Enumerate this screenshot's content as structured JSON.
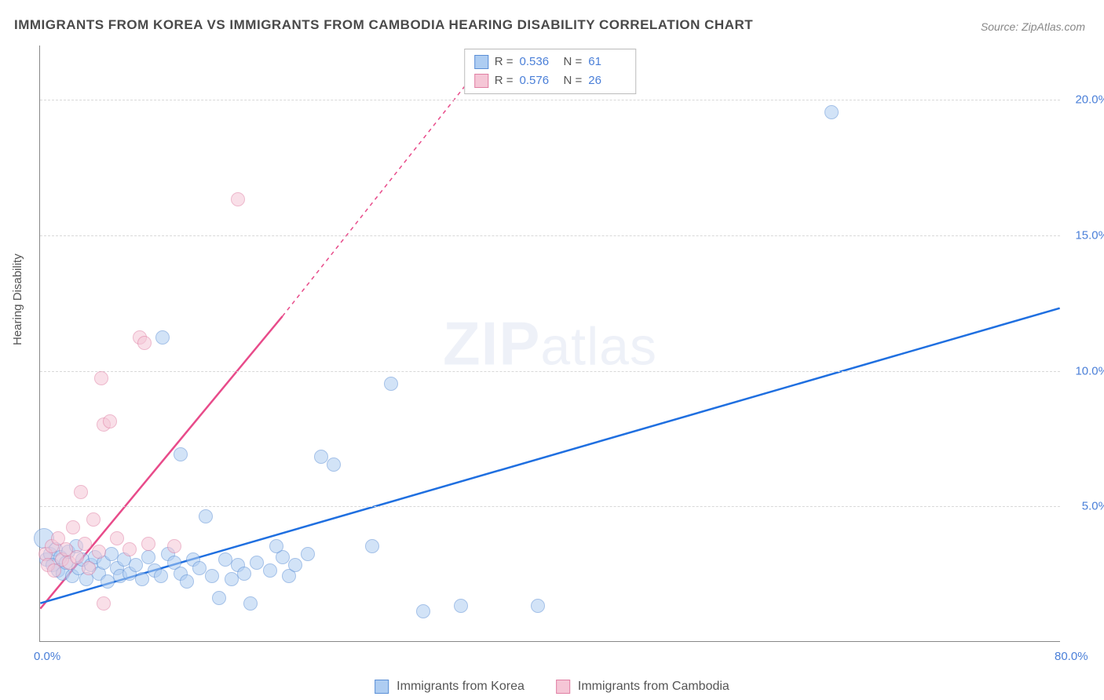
{
  "title": "IMMIGRANTS FROM KOREA VS IMMIGRANTS FROM CAMBODIA HEARING DISABILITY CORRELATION CHART",
  "source": "Source: ZipAtlas.com",
  "ylabel": "Hearing Disability",
  "watermark": "ZIPatlas",
  "chart": {
    "type": "scatter",
    "xlim": [
      0,
      80
    ],
    "ylim": [
      0,
      22
    ],
    "x_ticks": [
      {
        "v": 0,
        "label": "0.0%"
      },
      {
        "v": 80,
        "label": "80.0%"
      }
    ],
    "y_ticks": [
      {
        "v": 5,
        "label": "5.0%"
      },
      {
        "v": 10,
        "label": "10.0%"
      },
      {
        "v": 15,
        "label": "15.0%"
      },
      {
        "v": 20,
        "label": "20.0%"
      }
    ],
    "background_color": "#ffffff",
    "grid_color": "#d8d8d8",
    "axis_color": "#888888",
    "tick_label_color": "#4a7fd8",
    "tick_fontsize": 15,
    "title_fontsize": 17,
    "title_color": "#4a4a4a",
    "marker_radius": 9,
    "marker_radius_large": 13,
    "marker_opacity": 0.55,
    "series": [
      {
        "name": "Immigrants from Korea",
        "fill": "#aecdf2",
        "stroke": "#5b8fd6",
        "line_color": "#1f6fe0",
        "line_width": 2.5,
        "r": "0.536",
        "n": "61",
        "trend": {
          "x1": 0,
          "y1": 1.4,
          "x2": 80,
          "y2": 12.3
        },
        "points": [
          {
            "x": 0.3,
            "y": 3.8,
            "r": 13
          },
          {
            "x": 0.5,
            "y": 3.0
          },
          {
            "x": 0.8,
            "y": 3.2
          },
          {
            "x": 1.0,
            "y": 2.8
          },
          {
            "x": 1.2,
            "y": 3.4
          },
          {
            "x": 1.4,
            "y": 2.6
          },
          {
            "x": 1.6,
            "y": 3.1
          },
          {
            "x": 1.8,
            "y": 2.5
          },
          {
            "x": 2.0,
            "y": 2.9
          },
          {
            "x": 2.2,
            "y": 3.3
          },
          {
            "x": 2.5,
            "y": 2.4
          },
          {
            "x": 2.8,
            "y": 3.5
          },
          {
            "x": 3.0,
            "y": 2.7
          },
          {
            "x": 3.3,
            "y": 3.0
          },
          {
            "x": 3.6,
            "y": 2.3
          },
          {
            "x": 4.0,
            "y": 2.8
          },
          {
            "x": 4.3,
            "y": 3.1
          },
          {
            "x": 4.6,
            "y": 2.5
          },
          {
            "x": 5.0,
            "y": 2.9
          },
          {
            "x": 5.3,
            "y": 2.2
          },
          {
            "x": 5.6,
            "y": 3.2
          },
          {
            "x": 6.0,
            "y": 2.7
          },
          {
            "x": 6.3,
            "y": 2.4
          },
          {
            "x": 6.6,
            "y": 3.0
          },
          {
            "x": 7.0,
            "y": 2.5
          },
          {
            "x": 7.5,
            "y": 2.8
          },
          {
            "x": 8.0,
            "y": 2.3
          },
          {
            "x": 8.5,
            "y": 3.1
          },
          {
            "x": 9.0,
            "y": 2.6
          },
          {
            "x": 9.5,
            "y": 2.4
          },
          {
            "x": 10.0,
            "y": 3.2
          },
          {
            "x": 10.5,
            "y": 2.9
          },
          {
            "x": 11.0,
            "y": 2.5
          },
          {
            "x": 11.5,
            "y": 2.2
          },
          {
            "x": 12.0,
            "y": 3.0
          },
          {
            "x": 12.5,
            "y": 2.7
          },
          {
            "x": 13.0,
            "y": 4.6
          },
          {
            "x": 13.5,
            "y": 2.4
          },
          {
            "x": 14.0,
            "y": 1.6
          },
          {
            "x": 14.5,
            "y": 3.0
          },
          {
            "x": 15.0,
            "y": 2.3
          },
          {
            "x": 15.5,
            "y": 2.8
          },
          {
            "x": 16.0,
            "y": 2.5
          },
          {
            "x": 16.5,
            "y": 1.4
          },
          {
            "x": 17.0,
            "y": 2.9
          },
          {
            "x": 18.0,
            "y": 2.6
          },
          {
            "x": 19.0,
            "y": 3.1
          },
          {
            "x": 19.5,
            "y": 2.4
          },
          {
            "x": 20.0,
            "y": 2.8
          },
          {
            "x": 21.0,
            "y": 3.2
          },
          {
            "x": 22.0,
            "y": 6.8
          },
          {
            "x": 23.0,
            "y": 6.5
          },
          {
            "x": 9.6,
            "y": 11.2
          },
          {
            "x": 11.0,
            "y": 6.9
          },
          {
            "x": 26.0,
            "y": 3.5
          },
          {
            "x": 27.5,
            "y": 9.5
          },
          {
            "x": 30.0,
            "y": 1.1
          },
          {
            "x": 33.0,
            "y": 1.3
          },
          {
            "x": 39.0,
            "y": 1.3
          },
          {
            "x": 62.0,
            "y": 19.5
          },
          {
            "x": 18.5,
            "y": 3.5
          }
        ]
      },
      {
        "name": "Immigrants from Cambodia",
        "fill": "#f5c6d6",
        "stroke": "#e07fa3",
        "line_color": "#e84b8a",
        "line_width": 2.5,
        "r": "0.576",
        "n": "26",
        "trend_solid": {
          "x1": 0,
          "y1": 1.2,
          "x2": 19,
          "y2": 12.0
        },
        "trend_dashed": {
          "x1": 19,
          "y1": 12.0,
          "x2": 35,
          "y2": 21.5
        },
        "points": [
          {
            "x": 0.4,
            "y": 3.2
          },
          {
            "x": 0.6,
            "y": 2.8
          },
          {
            "x": 0.9,
            "y": 3.5
          },
          {
            "x": 1.1,
            "y": 2.6
          },
          {
            "x": 1.4,
            "y": 3.8
          },
          {
            "x": 1.7,
            "y": 3.0
          },
          {
            "x": 2.0,
            "y": 3.4
          },
          {
            "x": 2.3,
            "y": 2.9
          },
          {
            "x": 2.6,
            "y": 4.2
          },
          {
            "x": 2.9,
            "y": 3.1
          },
          {
            "x": 3.2,
            "y": 5.5
          },
          {
            "x": 3.5,
            "y": 3.6
          },
          {
            "x": 3.8,
            "y": 2.7
          },
          {
            "x": 4.2,
            "y": 4.5
          },
          {
            "x": 4.6,
            "y": 3.3
          },
          {
            "x": 5.0,
            "y": 8.0
          },
          {
            "x": 5.5,
            "y": 8.1
          },
          {
            "x": 4.8,
            "y": 9.7
          },
          {
            "x": 6.0,
            "y": 3.8
          },
          {
            "x": 7.0,
            "y": 3.4
          },
          {
            "x": 7.8,
            "y": 11.2
          },
          {
            "x": 8.2,
            "y": 11.0
          },
          {
            "x": 8.5,
            "y": 3.6
          },
          {
            "x": 10.5,
            "y": 3.5
          },
          {
            "x": 15.5,
            "y": 16.3
          },
          {
            "x": 5.0,
            "y": 1.4
          }
        ]
      }
    ]
  },
  "legend_bottom": [
    {
      "label": "Immigrants from Korea",
      "fill": "#aecdf2",
      "stroke": "#5b8fd6"
    },
    {
      "label": "Immigrants from Cambodia",
      "fill": "#f5c6d6",
      "stroke": "#e07fa3"
    }
  ]
}
